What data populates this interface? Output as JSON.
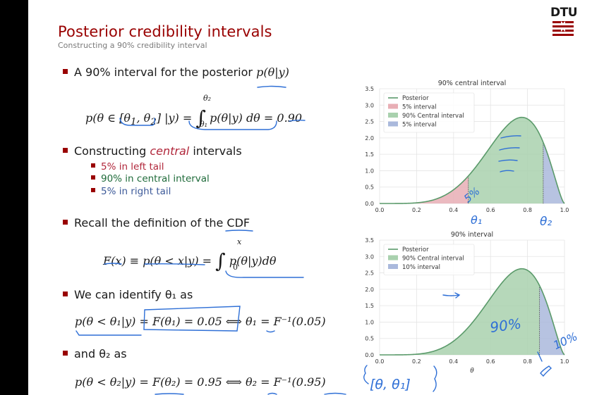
{
  "slide": {
    "title": "Posterior credibility intervals",
    "subtitle": "Constructing a 90% credibility interval",
    "logo": "DTU"
  },
  "bullets": {
    "b1": "A 90% interval for the posterior",
    "b1_math": "p(θ|y)",
    "eq1": "p(θ ∈ [θ₁, θ₂] |y) = ∫ p(θ|y) dθ = 0.90",
    "eq1_lower": "θ₁",
    "eq1_upper": "θ₂",
    "b2_prefix": "Constructing",
    "b2_em": "central",
    "b2_suffix": "intervals",
    "sub1": "5% in left tail",
    "sub2": "90% in central interval",
    "sub3": "5% in right tail",
    "b3": "Recall the definition of the CDF",
    "eq2": "F(x) ≡ p(θ < x|y) = ∫ p(θ|y)dθ",
    "eq2_lower": "0",
    "eq2_upper": "x",
    "b4": "We can identify θ₁ as",
    "eq3": "p(θ < θ₁|y) = F(θ₁) = 0.05 ⟺ θ₁ = F⁻¹(0.05)",
    "b5": "and θ₂ as",
    "eq4": "p(θ < θ₂|y) = F(θ₂) = 0.95 ⟺ θ₂ = F⁻¹(0.95)"
  },
  "handwriting": {
    "note_5pct": "5%",
    "note_theta1": "θ₁",
    "note_theta2": "θ₂",
    "note_90pct": "90%",
    "note_10pct": "10%",
    "note_interval": "[θ, θ₁]"
  },
  "colors": {
    "title_red": "#990000",
    "posterior_line": "#5a9a6a",
    "interval_red": "#e8aeb5",
    "interval_green": "#a9d1ae",
    "interval_blue": "#aab9dc",
    "ink_blue": "#2e6fd6"
  },
  "chart_data": [
    {
      "type": "area",
      "title": "90% central interval",
      "xlabel": "",
      "ylabel": "",
      "xlim": [
        0.0,
        1.0
      ],
      "ylim": [
        0.0,
        3.5
      ],
      "xticks": [
        "0.0",
        "0.2",
        "0.4",
        "0.6",
        "0.8",
        "1.0"
      ],
      "yticks": [
        "0.0",
        "0.5",
        "1.0",
        "1.5",
        "2.0",
        "2.5",
        "3.0",
        "3.5"
      ],
      "grid": true,
      "legend_position": "top-left",
      "distribution": {
        "family": "beta",
        "alpha": 6,
        "beta": 2.5
      },
      "series": [
        {
          "name": "Posterior",
          "kind": "line",
          "color": "#5a9a6a"
        },
        {
          "name": "5% interval",
          "kind": "fill",
          "x_range": [
            0.0,
            0.48
          ],
          "color": "#e8aeb5"
        },
        {
          "name": "90% Central interval",
          "kind": "fill",
          "x_range": [
            0.48,
            0.885
          ],
          "color": "#a9d1ae"
        },
        {
          "name": "5% interval",
          "kind": "fill",
          "x_range": [
            0.885,
            1.0
          ],
          "color": "#aab9dc"
        }
      ]
    },
    {
      "type": "area",
      "title": "90% interval",
      "xlabel": "θ",
      "ylabel": "",
      "xlim": [
        0.0,
        1.0
      ],
      "ylim": [
        0.0,
        3.5
      ],
      "xticks": [
        "0.0",
        "0.2",
        "0.4",
        "0.6",
        "0.8",
        "1.0"
      ],
      "yticks": [
        "0.0",
        "0.5",
        "1.0",
        "1.5",
        "2.0",
        "2.5",
        "3.0",
        "3.5"
      ],
      "grid": true,
      "legend_position": "top-left",
      "distribution": {
        "family": "beta",
        "alpha": 6,
        "beta": 2.5
      },
      "series": [
        {
          "name": "Posterior",
          "kind": "line",
          "color": "#5a9a6a"
        },
        {
          "name": "90% Central interval",
          "kind": "fill",
          "x_range": [
            0.0,
            0.865
          ],
          "color": "#a9d1ae"
        },
        {
          "name": "10% interval",
          "kind": "fill",
          "x_range": [
            0.865,
            1.0
          ],
          "color": "#aab9dc"
        }
      ]
    }
  ]
}
